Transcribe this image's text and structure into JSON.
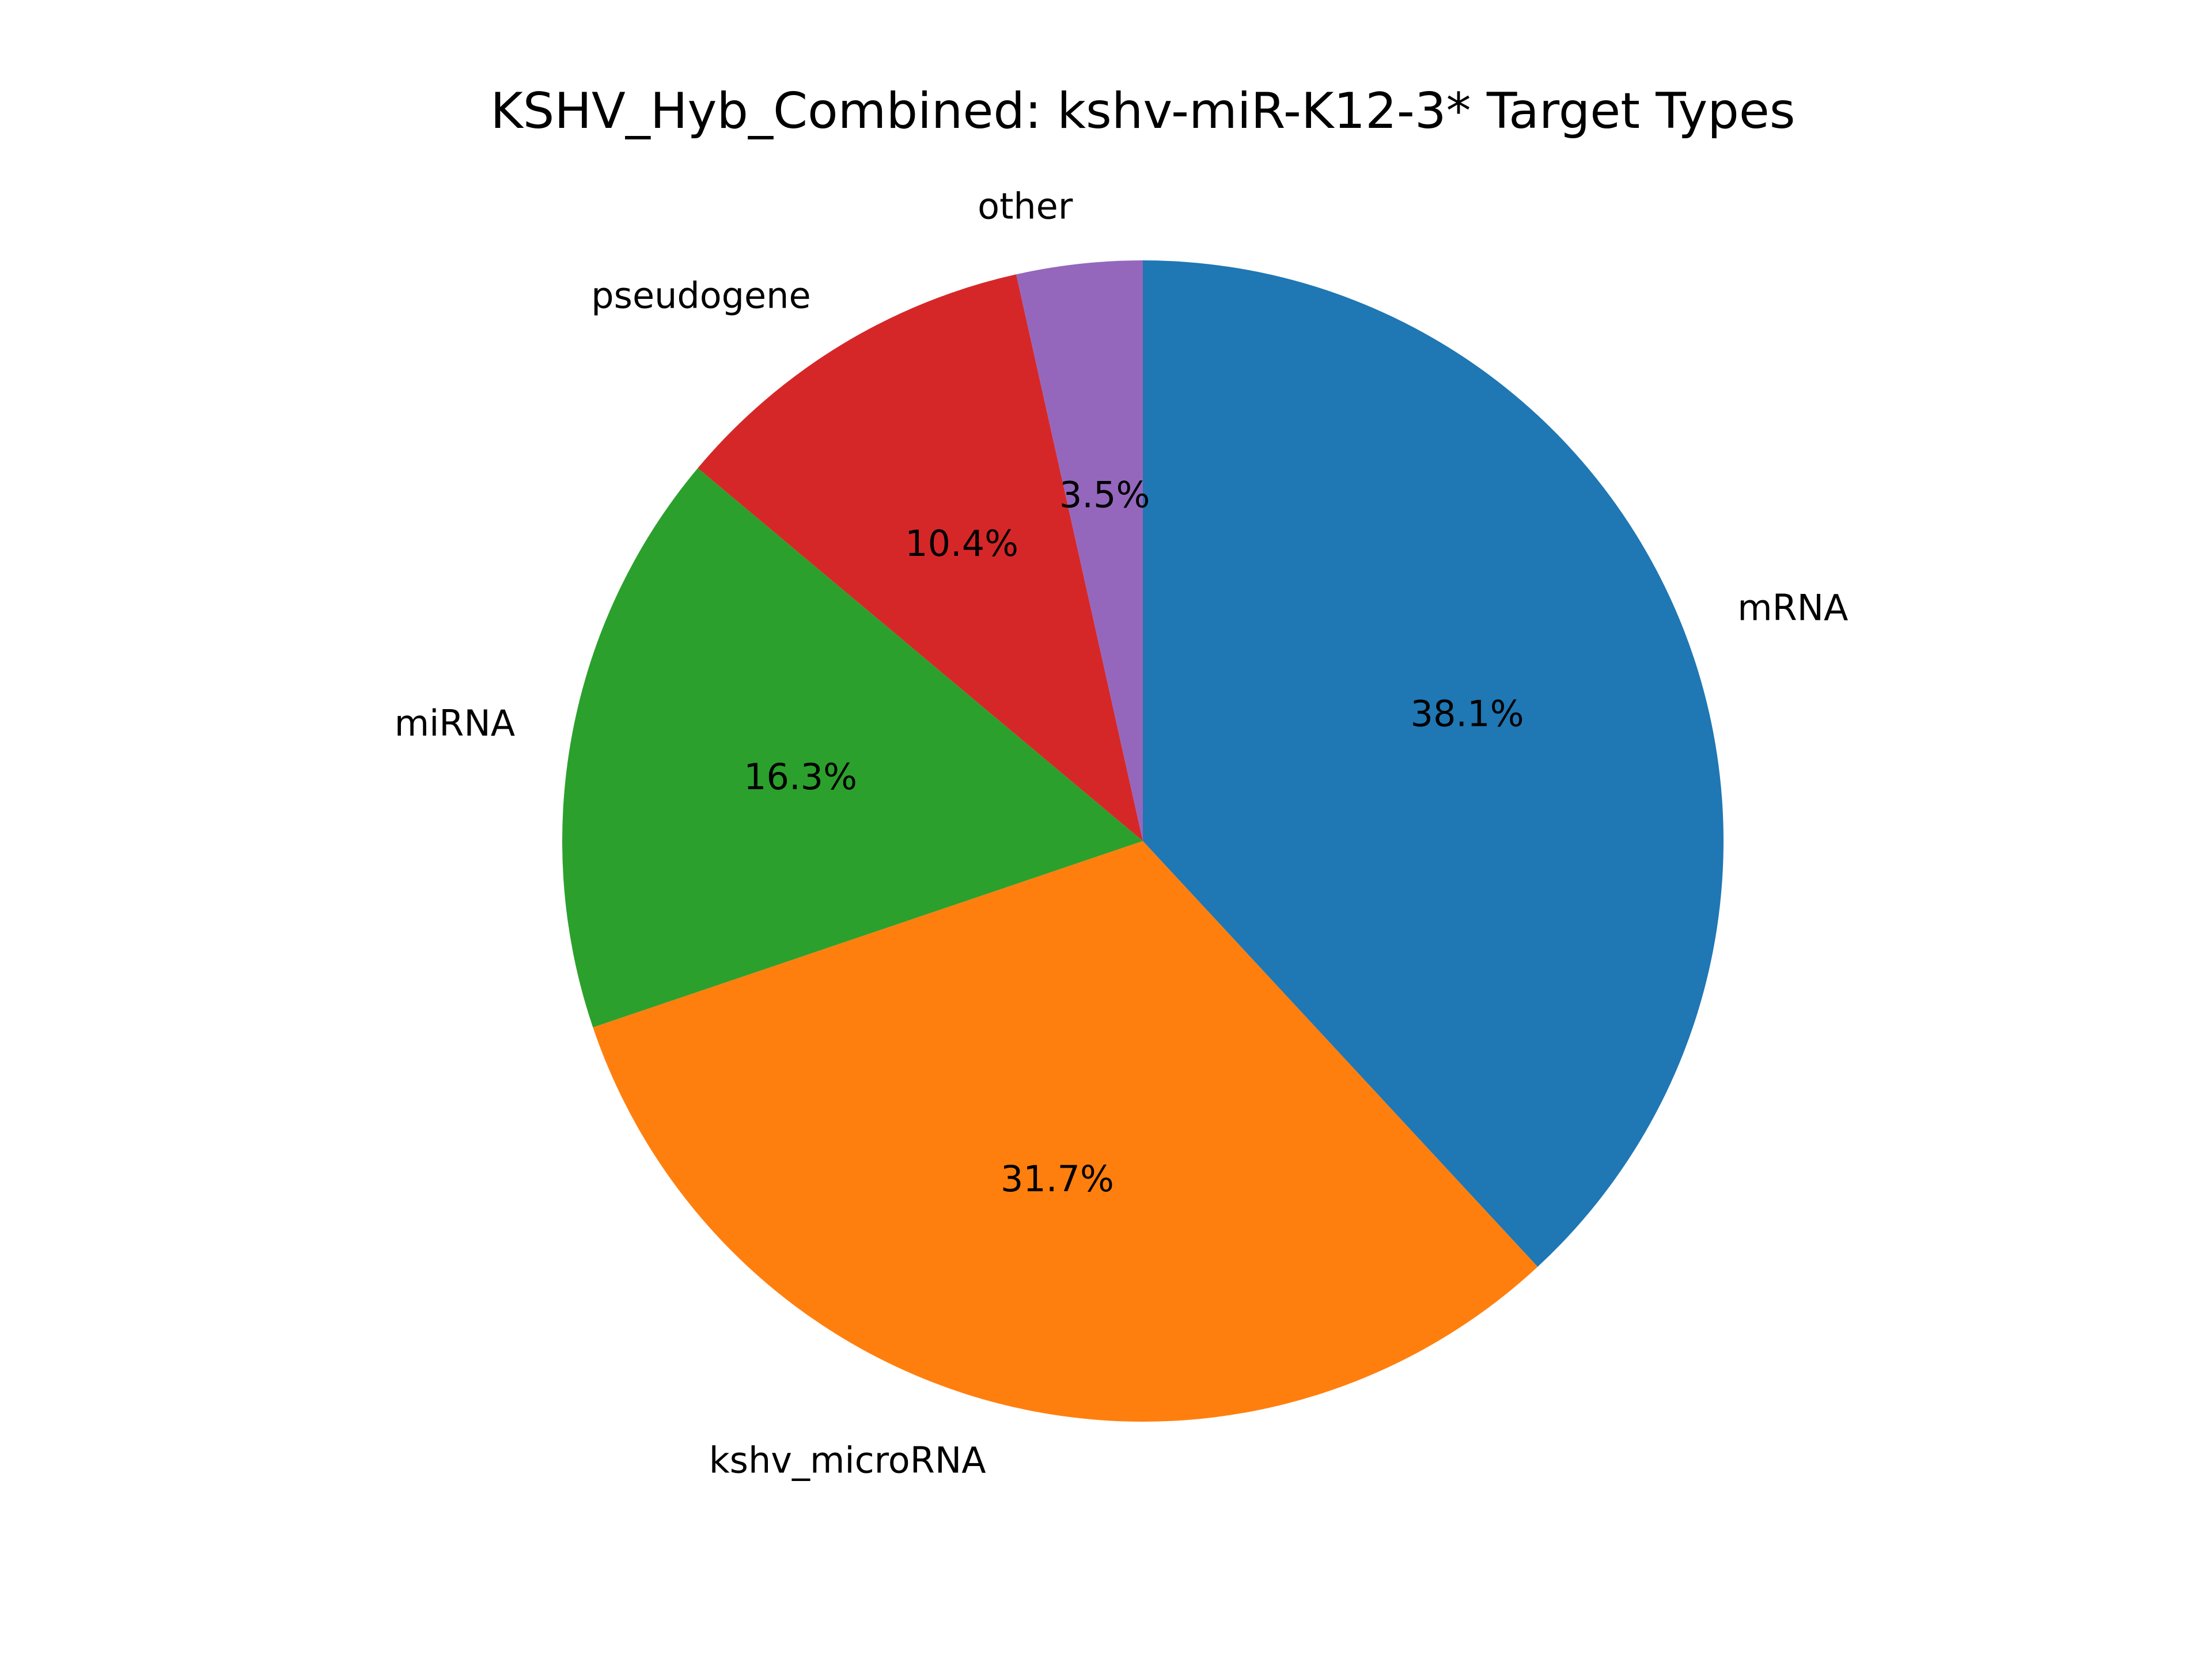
{
  "chart_data": {
    "type": "pie",
    "title": "KSHV_Hyb_Combined: kshv-miR-K12-3* Target Types",
    "start_angle_deg": 90,
    "direction": "clockwise",
    "slices": [
      {
        "label": "mRNA",
        "value": 38.1,
        "pct_label": "38.1%",
        "color": "#1f77b4"
      },
      {
        "label": "kshv_microRNA",
        "value": 31.7,
        "pct_label": "31.7%",
        "color": "#ff7f0e"
      },
      {
        "label": "miRNA",
        "value": 16.3,
        "pct_label": "16.3%",
        "color": "#2ca02c"
      },
      {
        "label": "pseudogene",
        "value": 10.4,
        "pct_label": "10.4%",
        "color": "#d62728"
      },
      {
        "label": "other",
        "value": 3.5,
        "pct_label": "3.5%",
        "color": "#9467bd"
      }
    ]
  }
}
